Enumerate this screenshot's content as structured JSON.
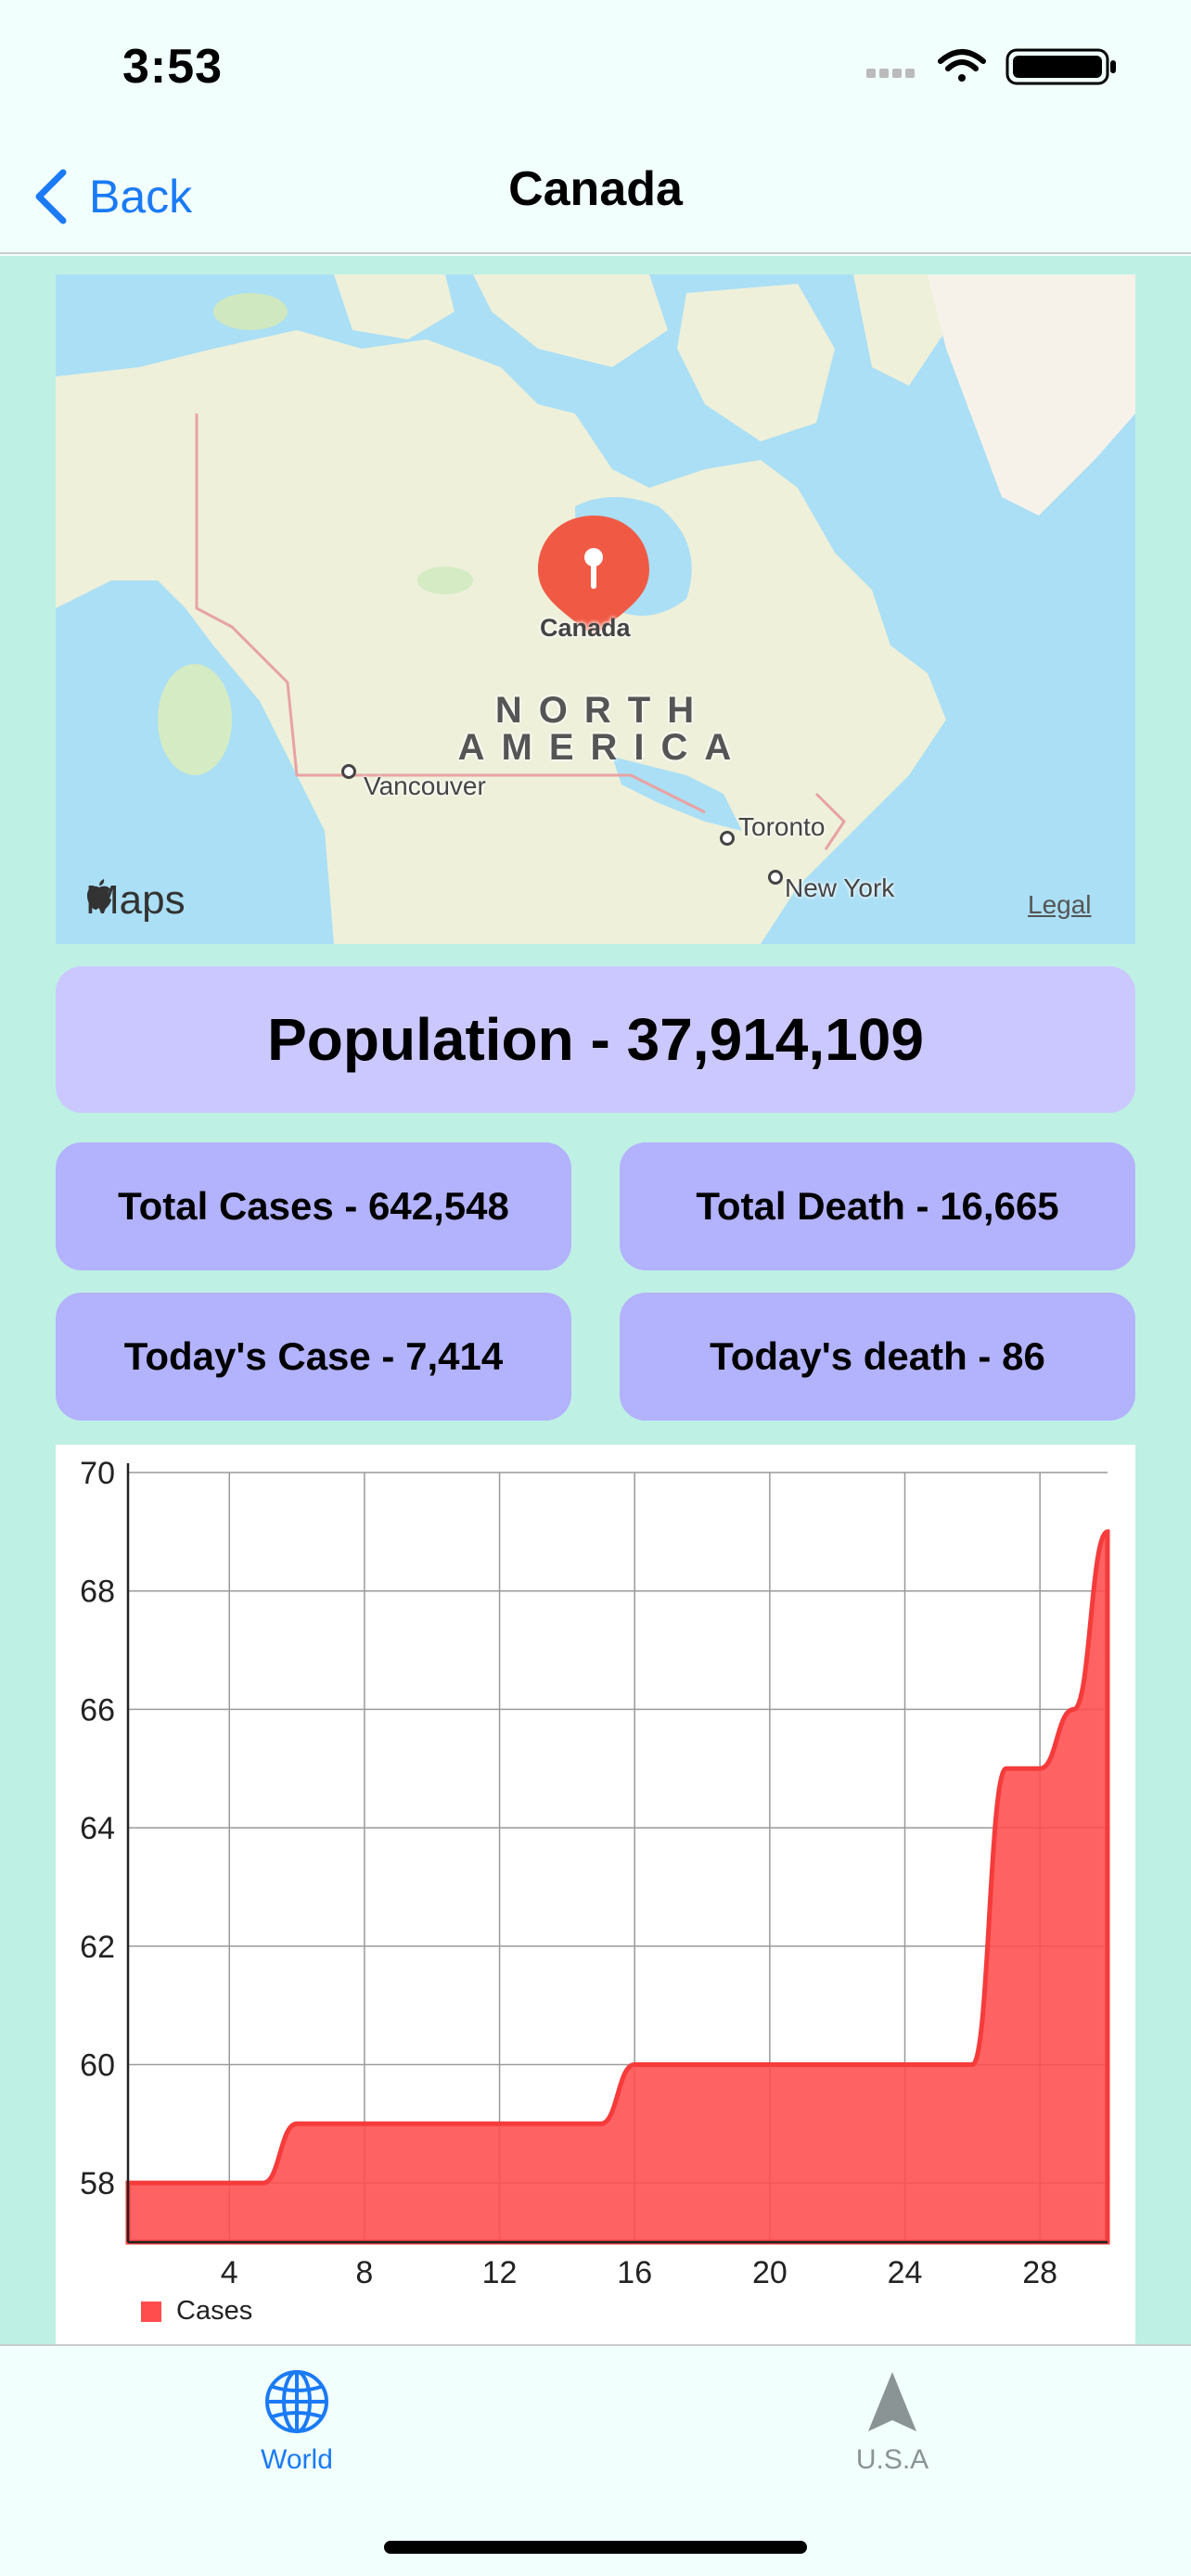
{
  "status_bar": {
    "time": "3:53"
  },
  "nav": {
    "back_label": "Back",
    "title": "Canada"
  },
  "map": {
    "pin_label": "Canada",
    "region_line1": "NORTH",
    "region_line2": "AMERICA",
    "cities": [
      {
        "name": "Vancouver"
      },
      {
        "name": "Toronto"
      },
      {
        "name": "New York"
      }
    ],
    "maps_logo": "Maps",
    "legal": "Legal",
    "colors": {
      "water": "#aadff5",
      "land": "#eef0da",
      "pin": "#f05a45"
    }
  },
  "stats": {
    "population": "Population - 37,914,109",
    "total_cases": "Total Cases - 642,548",
    "total_death": "Total Death - 16,665",
    "todays_case": "Today's Case - 7,414",
    "todays_death": "Today's death - 86"
  },
  "chart_data": {
    "type": "area",
    "x": [
      1,
      2,
      3,
      4,
      5,
      6,
      7,
      8,
      9,
      10,
      11,
      12,
      13,
      14,
      15,
      16,
      17,
      18,
      19,
      20,
      21,
      22,
      23,
      24,
      25,
      26,
      27,
      28,
      29,
      30
    ],
    "series": [
      {
        "name": "Cases",
        "values": [
          58,
          58,
          58,
          58,
          58,
          59,
          59,
          59,
          59,
          59,
          59,
          59,
          59,
          59,
          59,
          60,
          60,
          60,
          60,
          60,
          60,
          60,
          60,
          60,
          60,
          60,
          65,
          65,
          66,
          69
        ],
        "color": "#ff4c4c"
      }
    ],
    "xticks": [
      4,
      8,
      12,
      16,
      20,
      24,
      28
    ],
    "yticks": [
      58,
      60,
      62,
      64,
      66,
      68,
      70
    ],
    "xlim": [
      1,
      30
    ],
    "ylim": [
      57,
      70
    ],
    "grid": true,
    "legend": "bottom-left",
    "title": "",
    "xlabel": "",
    "ylabel": ""
  },
  "tabs": [
    {
      "label": "World",
      "icon": "globe-icon",
      "active": true
    },
    {
      "label": "U.S.A",
      "icon": "location-arrow-icon",
      "active": false
    }
  ],
  "colors": {
    "accent": "#1b7af5",
    "inactive": "#8a9494",
    "content_bg": "#bff0e4"
  }
}
